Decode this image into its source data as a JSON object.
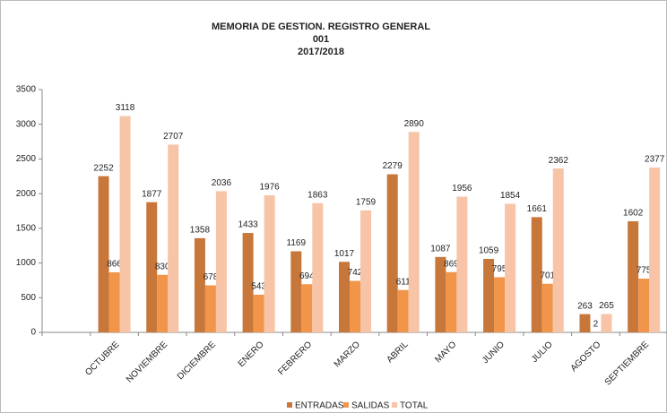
{
  "chart_data": {
    "type": "bar",
    "title_lines": [
      "MEMORIA DE GESTION. REGISTRO GENERAL",
      "001",
      "2017/2018"
    ],
    "categories": [
      null,
      "OCTUBRE",
      "NOVIEMBRE",
      "DICIEMBRE",
      "ENERO",
      "FEBRERO",
      "MARZO",
      "ABRIL",
      "MAYO",
      "JUNIO",
      "JULIO",
      "AGOSTO",
      "SEPTIEMBRE"
    ],
    "series": [
      {
        "name": "ENTRADAS",
        "color": "#c8773a",
        "values": [
          null,
          2252,
          1877,
          1358,
          1433,
          1169,
          1017,
          2279,
          1087,
          1059,
          1661,
          263,
          1602
        ]
      },
      {
        "name": "SALIDAS",
        "color": "#f0954a",
        "values": [
          null,
          866,
          830,
          678,
          543,
          694,
          742,
          611,
          869,
          795,
          701,
          2,
          775
        ]
      },
      {
        "name": "TOTAL",
        "color": "#f7c4a8",
        "values": [
          null,
          3118,
          2707,
          2036,
          1976,
          1863,
          1759,
          2890,
          1956,
          1854,
          2362,
          265,
          2377
        ]
      }
    ],
    "ylim": [
      0,
      3500
    ],
    "yticks": [
      0,
      500,
      1000,
      1500,
      2000,
      2500,
      3000,
      3500
    ],
    "legend": "bottom"
  }
}
